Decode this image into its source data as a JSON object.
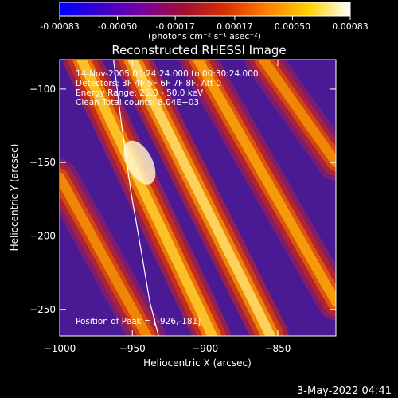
{
  "chart_data": {
    "type": "heatmap",
    "title": "Reconstructed RHESSI Image",
    "xlabel": "Heliocentric X (arcsec)",
    "ylabel": "Heliocentric Y (arcsec)",
    "xlim": [
      -1000,
      -810
    ],
    "ylim": [
      -268,
      -80
    ],
    "x_ticks": [
      -1000,
      -950,
      -900,
      -850
    ],
    "x_tick_labels": [
      "−1000",
      "−950",
      "−900",
      "−850"
    ],
    "y_ticks": [
      -100,
      -150,
      -200,
      -250
    ],
    "y_tick_labels": [
      "−100",
      "−150",
      "−200",
      "−250"
    ],
    "colorbar": {
      "range": [
        -0.00083,
        0.00083
      ],
      "ticks": [
        -0.00083,
        -0.0005,
        -0.00017,
        0.00017,
        0.0005,
        0.00083
      ],
      "tick_labels": [
        "-0.00083",
        "-0.00050",
        "-0.00017",
        "0.00017",
        "0.00050",
        "0.00083"
      ],
      "units_label": "(photons cm⁻² s⁻¹ asec⁻²)",
      "colors": [
        "#0000ff",
        "#3a00cc",
        "#7a00a0",
        "#a01030",
        "#d83000",
        "#ff8000",
        "#ffd000",
        "#ffffff"
      ]
    },
    "annotations": [
      "14-Nov-2005 00:24:24.000 to 00:30:24.000",
      "Detectors: 3F 4F 5F 6F 7F 8F, Att 0",
      "Energy Range: 25.0 - 50.0 keV",
      "Clean    Total counts: 8.04E+03"
    ],
    "peak_text": "Position of Peak = [-926,-181]",
    "limb_curve": {
      "x": [
        -963,
        -958,
        -951,
        -944,
        -938,
        -932
      ],
      "y": [
        -80,
        -120,
        -170,
        -210,
        -245,
        -268
      ]
    },
    "stripes": [
      {
        "x0": -985,
        "y0": -80,
        "x1": -895,
        "y1": -268,
        "peak": 0.95
      },
      {
        "x0": -950,
        "y0": -80,
        "x1": -855,
        "y1": -268,
        "peak": 1.0
      },
      {
        "x0": -905,
        "y0": -80,
        "x1": -810,
        "y1": -245,
        "peak": 0.85
      },
      {
        "x0": -860,
        "y0": -80,
        "x1": -810,
        "y1": -150,
        "peak": 0.8
      },
      {
        "x0": -1000,
        "y0": -160,
        "x1": -940,
        "y1": -268,
        "peak": 0.8
      }
    ]
  },
  "footer": {
    "date": "3-May-2022 04:41"
  }
}
